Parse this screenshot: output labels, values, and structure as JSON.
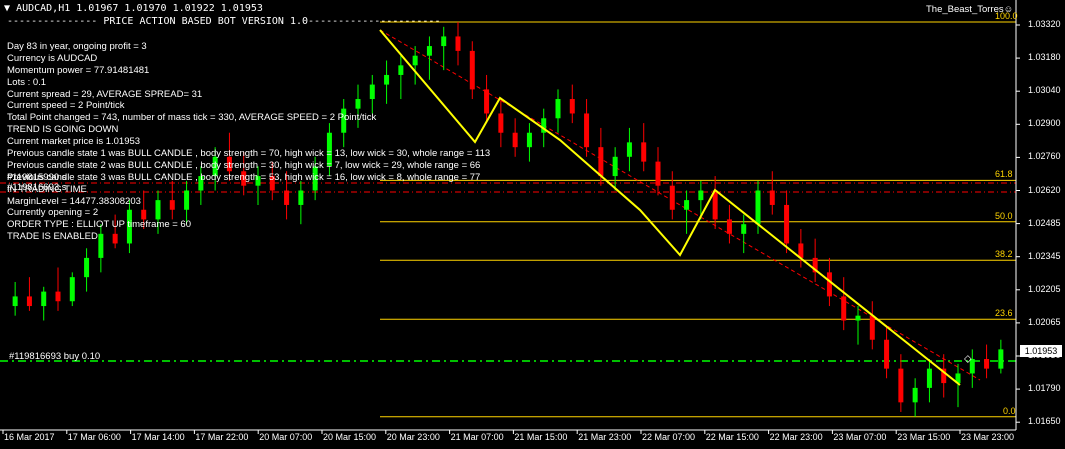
{
  "header": {
    "symbol_line": "AUDCAD,H1  1.01967 1.01970 1.01922 1.01953",
    "bot_title": "--------------- PRICE ACTION BASED BOT VERSION 1.0----------------------",
    "user": "The_Beast_Torres"
  },
  "info_lines": [
    "Day 83 in year, ongoing profit = 3",
    "Currency is AUDCAD",
    "Momentum power = 77.91481481",
    "Lots : 0.1",
    "Current spread = 29, AVERAGE SPREAD= 31",
    "Current speed = 2 Point/tick",
    "Total Point changed = 743, number of mass tick = 330, AVERAGE SPEED = 2 Point/tick",
    "TREND IS GOING DOWN",
    "Current market price is 1.01953",
    "Previous candle state 1 was BULL CANDLE , body strength = 70, high wick = 13, low wick = 30, whole range = 113",
    "Previous candle state 2 was BULL CANDLE , body strength = 30, high wick = 7, low wick = 29, whole range = 66",
    "Previous candle state 3 was BULL CANDLE , body strength = 53, high wick = 16, low wick = 8, whole range = 77",
    "IN TRADING TIME",
    "MarginLevel = 14477.38308203",
    "Currently opening = 2",
    "ORDER TYPE : ELLIOT UP timeframe = 60",
    "TRADE IS ENABLED"
  ],
  "order_labels": {
    "o1": "#119815990 s",
    "o2": "#119816693 s",
    "buy_line": "#119816693 buy 0.10"
  },
  "fib_levels": [
    {
      "label": "100.0",
      "price": 1.0332
    },
    {
      "label": "61.8",
      "price": 1.02662
    },
    {
      "label": "50.0",
      "price": 1.0249
    },
    {
      "label": "38.2",
      "price": 1.0233
    },
    {
      "label": "23.6",
      "price": 1.02085
    },
    {
      "label": "0.0",
      "price": 1.0168
    }
  ],
  "price_axis": [
    "1.03320",
    "1.03180",
    "1.03040",
    "1.02900",
    "1.02760",
    "1.02620",
    "1.02485",
    "1.02345",
    "1.02205",
    "1.02065",
    "1.01930",
    "1.01790",
    "1.01650"
  ],
  "current_price": "1.01953",
  "time_axis": [
    "16 Mar 2017",
    "17 Mar 06:00",
    "17 Mar 14:00",
    "17 Mar 22:00",
    "20 Mar 07:00",
    "20 Mar 15:00",
    "20 Mar 23:00",
    "21 Mar 07:00",
    "21 Mar 15:00",
    "21 Mar 23:00",
    "22 Mar 07:00",
    "22 Mar 15:00",
    "22 Mar 23:00",
    "23 Mar 07:00",
    "23 Mar 15:00",
    "23 Mar 23:00"
  ],
  "colors": {
    "bull": "#00ff00",
    "bear": "#ff0000",
    "fib": "#ffd400",
    "zigzag": "#ffff00",
    "order_sl": "#ff0000",
    "buy_line": "#00ff00",
    "axis": "#ffffff"
  },
  "chart_data": {
    "type": "candlestick",
    "price_range": [
      1.0165,
      1.0332
    ],
    "candles": [
      [
        1.0214,
        1.0224,
        1.021,
        1.0218
      ],
      [
        1.0218,
        1.0226,
        1.0212,
        1.0214
      ],
      [
        1.0214,
        1.0222,
        1.0208,
        1.022
      ],
      [
        1.022,
        1.023,
        1.0212,
        1.0216
      ],
      [
        1.0216,
        1.0228,
        1.0214,
        1.0226
      ],
      [
        1.0226,
        1.0238,
        1.022,
        1.0234
      ],
      [
        1.0234,
        1.0248,
        1.0228,
        1.0244
      ],
      [
        1.0244,
        1.0252,
        1.0238,
        1.024
      ],
      [
        1.024,
        1.0258,
        1.0236,
        1.0254
      ],
      [
        1.0254,
        1.0262,
        1.0246,
        1.025
      ],
      [
        1.025,
        1.0262,
        1.0244,
        1.0258
      ],
      [
        1.0258,
        1.0266,
        1.025,
        1.0254
      ],
      [
        1.0254,
        1.0266,
        1.0248,
        1.0262
      ],
      [
        1.0262,
        1.0272,
        1.0256,
        1.0268
      ],
      [
        1.0268,
        1.028,
        1.0262,
        1.0276
      ],
      [
        1.0276,
        1.0286,
        1.0266,
        1.027
      ],
      [
        1.027,
        1.0278,
        1.026,
        1.0264
      ],
      [
        1.0264,
        1.0272,
        1.0256,
        1.0268
      ],
      [
        1.0268,
        1.0274,
        1.0258,
        1.0262
      ],
      [
        1.0262,
        1.027,
        1.025,
        1.0256
      ],
      [
        1.0256,
        1.0266,
        1.0248,
        1.0262
      ],
      [
        1.0262,
        1.0276,
        1.0258,
        1.0272
      ],
      [
        1.0272,
        1.029,
        1.0268,
        1.0286
      ],
      [
        1.0286,
        1.03,
        1.028,
        1.0296
      ],
      [
        1.0296,
        1.0306,
        1.0288,
        1.03
      ],
      [
        1.03,
        1.031,
        1.0294,
        1.0306
      ],
      [
        1.0306,
        1.0316,
        1.0298,
        1.031
      ],
      [
        1.031,
        1.0318,
        1.03,
        1.0314
      ],
      [
        1.0314,
        1.0322,
        1.0306,
        1.0318
      ],
      [
        1.0318,
        1.0326,
        1.0308,
        1.0322
      ],
      [
        1.0322,
        1.033,
        1.0312,
        1.0326
      ],
      [
        1.0326,
        1.0332,
        1.0314,
        1.032
      ],
      [
        1.032,
        1.0324,
        1.03,
        1.0304
      ],
      [
        1.0304,
        1.031,
        1.029,
        1.0294
      ],
      [
        1.0294,
        1.03,
        1.028,
        1.0286
      ],
      [
        1.0286,
        1.0292,
        1.0276,
        1.028
      ],
      [
        1.028,
        1.029,
        1.0274,
        1.0286
      ],
      [
        1.0286,
        1.0296,
        1.028,
        1.0292
      ],
      [
        1.0292,
        1.0304,
        1.0286,
        1.03
      ],
      [
        1.03,
        1.0306,
        1.029,
        1.0294
      ],
      [
        1.0294,
        1.03,
        1.0276,
        1.028
      ],
      [
        1.028,
        1.0288,
        1.0264,
        1.0268
      ],
      [
        1.0268,
        1.028,
        1.0262,
        1.0276
      ],
      [
        1.0276,
        1.0288,
        1.027,
        1.0282
      ],
      [
        1.0282,
        1.029,
        1.027,
        1.0274
      ],
      [
        1.0274,
        1.028,
        1.026,
        1.0264
      ],
      [
        1.0264,
        1.027,
        1.025,
        1.0254
      ],
      [
        1.0254,
        1.0262,
        1.0244,
        1.0258
      ],
      [
        1.0258,
        1.0266,
        1.025,
        1.0262
      ],
      [
        1.0262,
        1.0268,
        1.0246,
        1.025
      ],
      [
        1.025,
        1.0256,
        1.024,
        1.0244
      ],
      [
        1.0244,
        1.0252,
        1.0236,
        1.0248
      ],
      [
        1.0248,
        1.0266,
        1.0244,
        1.0262
      ],
      [
        1.0262,
        1.027,
        1.0252,
        1.0256
      ],
      [
        1.0256,
        1.0262,
        1.0236,
        1.024
      ],
      [
        1.024,
        1.0246,
        1.023,
        1.0234
      ],
      [
        1.0234,
        1.0242,
        1.0224,
        1.0228
      ],
      [
        1.0228,
        1.0234,
        1.0214,
        1.0218
      ],
      [
        1.0218,
        1.0226,
        1.0204,
        1.0208
      ],
      [
        1.0208,
        1.0214,
        1.0198,
        1.021
      ],
      [
        1.021,
        1.0216,
        1.0196,
        1.02
      ],
      [
        1.02,
        1.0206,
        1.0184,
        1.0188
      ],
      [
        1.0188,
        1.0194,
        1.017,
        1.0174
      ],
      [
        1.0174,
        1.0184,
        1.0168,
        1.018
      ],
      [
        1.018,
        1.0192,
        1.0174,
        1.0188
      ],
      [
        1.0188,
        1.0194,
        1.0176,
        1.0182
      ],
      [
        1.0182,
        1.019,
        1.0172,
        1.0186
      ],
      [
        1.0186,
        1.0196,
        1.018,
        1.0192
      ],
      [
        1.0192,
        1.0198,
        1.0184,
        1.0188
      ],
      [
        1.0188,
        1.02,
        1.0186,
        1.0196
      ]
    ]
  }
}
